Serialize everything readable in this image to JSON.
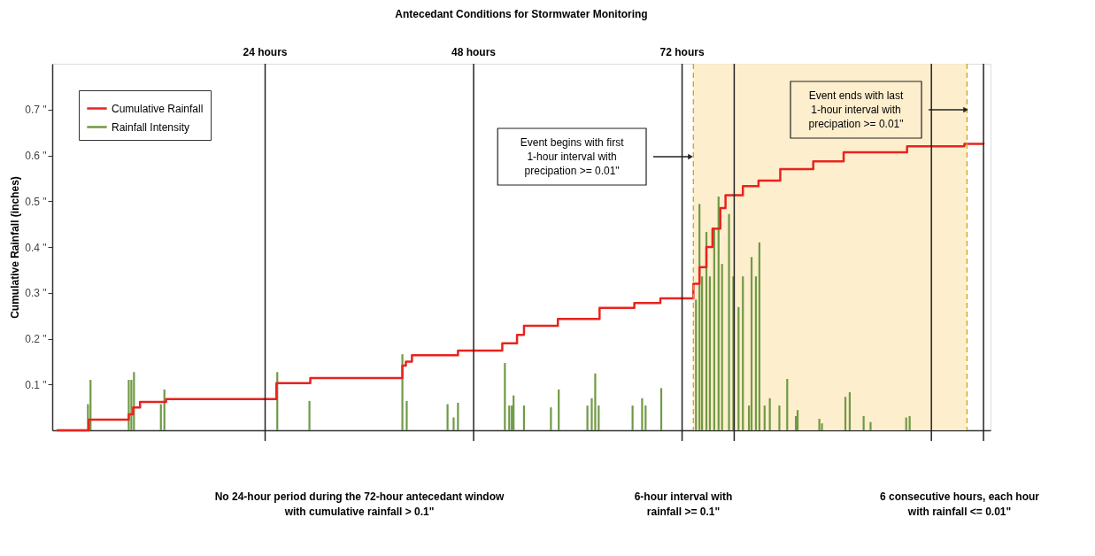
{
  "chart_data": {
    "type": "step",
    "title": "Antecedant Conditions for Stormwater Monitoring",
    "ylabel": "Cumulative Rainfall (inches)",
    "xlim": [
      0,
      107
    ],
    "ylim": [
      0,
      0.8
    ],
    "yticks": [
      {
        "value": 0.1,
        "label": "0.1 \""
      },
      {
        "value": 0.2,
        "label": "0.2 \""
      },
      {
        "value": 0.3,
        "label": "0.3 \""
      },
      {
        "value": 0.4,
        "label": "0.4 \""
      },
      {
        "value": 0.5,
        "label": "0.5 \""
      },
      {
        "value": 0.6,
        "label": "0.6 \""
      },
      {
        "value": 0.7,
        "label": "0.7 \""
      }
    ],
    "tick_labels": "y",
    "grid": false,
    "legend": "top left",
    "line_style": "solid",
    "marker": "none",
    "series": [
      {
        "name": "Cumulative Rainfall",
        "color": "#e8231f",
        "x": [
          0,
          3.7,
          8.3,
          8.8,
          9.6,
          12.6,
          25.3,
          29.2,
          39.8,
          40.2,
          40.9,
          46.2,
          51.3,
          53.0,
          53.8,
          57.7,
          62.5,
          66.5,
          69.5,
          73.3,
          74.0,
          74.8,
          75.5,
          76.4,
          77.0,
          79.0,
          80.8,
          83.3,
          87.1,
          90.6,
          97.9,
          104.5,
          106.7
        ],
        "values": [
          0,
          0.023,
          0.035,
          0.05,
          0.062,
          0.068,
          0.103,
          0.114,
          0.141,
          0.15,
          0.164,
          0.174,
          0.19,
          0.208,
          0.228,
          0.243,
          0.267,
          0.278,
          0.288,
          0.32,
          0.356,
          0.4,
          0.44,
          0.485,
          0.513,
          0.533,
          0.545,
          0.57,
          0.587,
          0.607,
          0.62,
          0.625,
          0.627
        ]
      },
      {
        "name": "Rainfall Intensity",
        "type": "bar",
        "color": "#6f9a45",
        "x": [
          3.6,
          3.9,
          8.3,
          8.6,
          8.9,
          12.0,
          12.4,
          25.4,
          29.1,
          39.8,
          40.3,
          45.0,
          45.7,
          46.2,
          51.6,
          52.1,
          52.4,
          52.6,
          53.8,
          56.9,
          57.8,
          61.1,
          61.6,
          62.0,
          62.4,
          66.3,
          67.4,
          67.8,
          69.6,
          73.6,
          74.0,
          74.3,
          74.8,
          75.2,
          75.7,
          76.2,
          76.6,
          77.4,
          77.9,
          78.5,
          79.0,
          79.7,
          80.0,
          80.5,
          80.9,
          81.5,
          82.1,
          83.2,
          84.1,
          85.1,
          85.3,
          87.8,
          88.1,
          90.8,
          91.3,
          92.9,
          93.7,
          97.8,
          98.2
        ],
        "values": [
          0.057,
          0.11,
          0.11,
          0.11,
          0.127,
          0.057,
          0.089,
          0.127,
          0.064,
          0.166,
          0.064,
          0.057,
          0.028,
          0.06,
          0.147,
          0.054,
          0.054,
          0.076,
          0.054,
          0.05,
          0.089,
          0.054,
          0.07,
          0.124,
          0.054,
          0.054,
          0.07,
          0.054,
          0.092,
          0.285,
          0.494,
          0.336,
          0.433,
          0.336,
          0.44,
          0.51,
          0.363,
          0.472,
          0.336,
          0.269,
          0.336,
          0.054,
          0.378,
          0.336,
          0.41,
          0.054,
          0.07,
          0.054,
          0.112,
          0.031,
          0.044,
          0.025,
          0.015,
          0.073,
          0.083,
          0.031,
          0.018,
          0.028,
          0.031
        ]
      }
    ],
    "ref_lines": [
      {
        "axis": "x",
        "value": 24,
        "label": "24 hours",
        "color": "#222222"
      },
      {
        "axis": "x",
        "value": 48,
        "label": "48 hours",
        "color": "#222222"
      },
      {
        "axis": "x",
        "value": 72,
        "label": "72 hours",
        "color": "#222222"
      },
      {
        "axis": "x",
        "value": 78,
        "label": null,
        "color": "#222222"
      },
      {
        "axis": "x",
        "value": 100.7,
        "label": null,
        "color": "#222222"
      },
      {
        "axis": "x",
        "value": 106.7,
        "label": null,
        "color": "#222222"
      },
      {
        "axis": "x",
        "value": 73.3,
        "label": null,
        "color": "#d4a017",
        "line_style": "dashed"
      },
      {
        "axis": "x",
        "value": 104.8,
        "label": null,
        "color": "#d4a017",
        "line_style": "dashed"
      }
    ],
    "bands": [
      {
        "axis": "x",
        "from": 73.3,
        "to": 104.8,
        "label": null,
        "color": "#fdebc4"
      }
    ],
    "annotations": [
      "Event begins with first\n1-hour interval with\nprecipation >= 0.01\"",
      "Event ends with last\n1-hour interval with\nprecipation >= 0.01\"",
      "No 24-hour period during the 72-hour antecedant window\nwith cumulative rainfall > 0.1\"",
      "6-hour interval with\nrainfall >= 0.1\"",
      "6 consecutive hours, each hour\nwith rainfall <= 0.01\""
    ]
  }
}
